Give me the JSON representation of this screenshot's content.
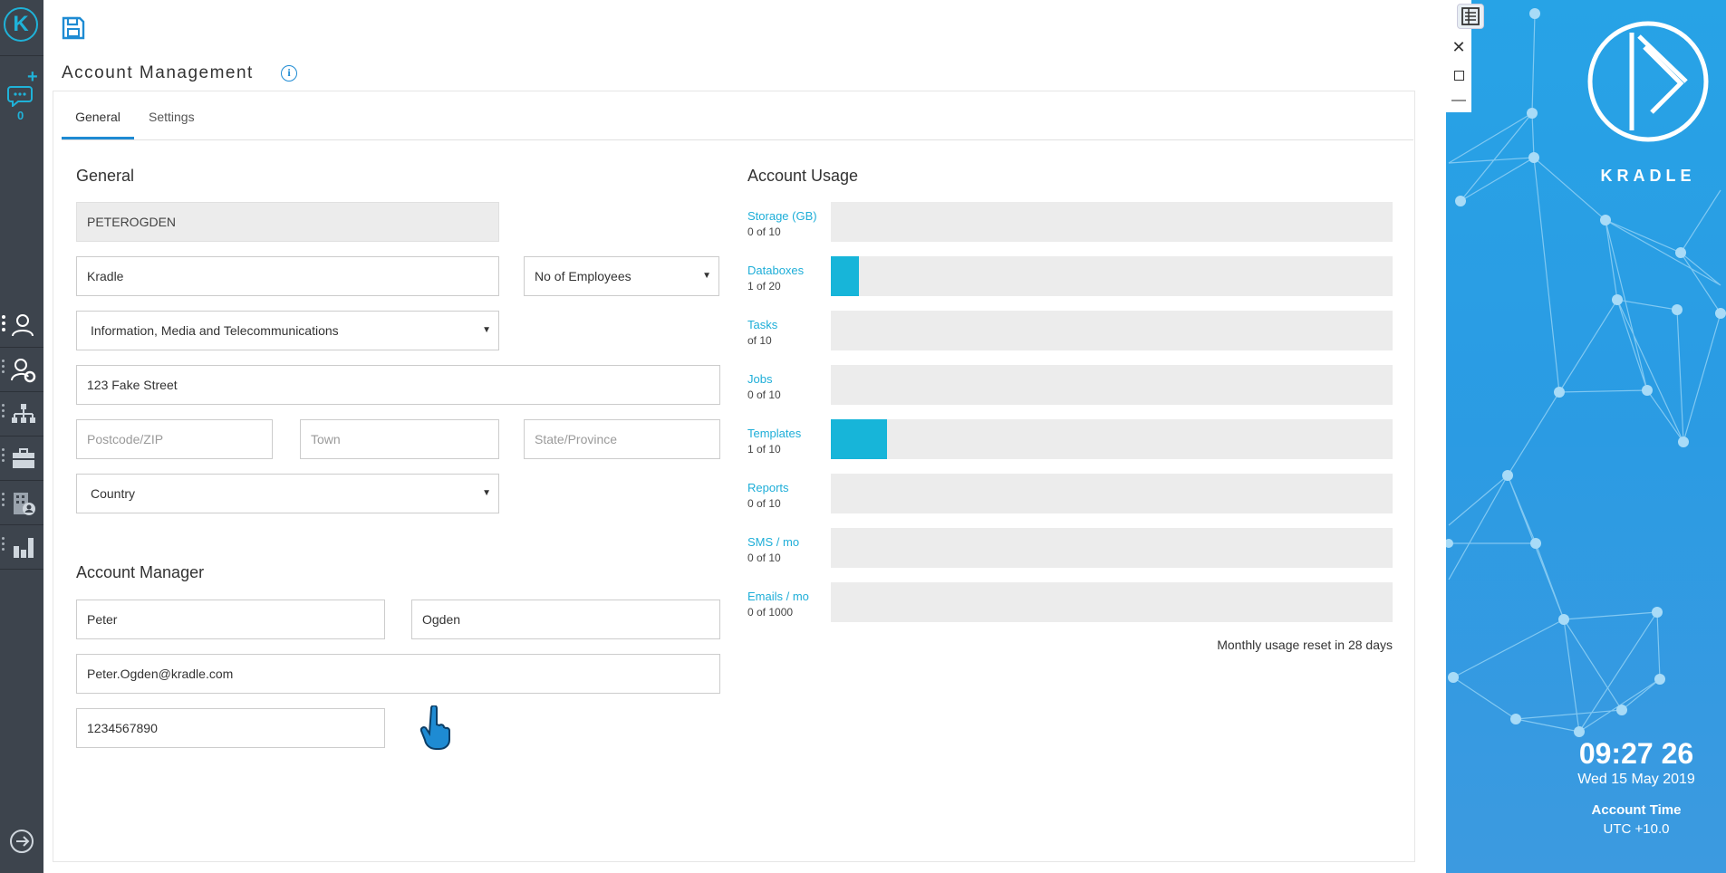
{
  "page": {
    "title": "Account Management"
  },
  "tabs": [
    {
      "label": "General"
    },
    {
      "label": "Settings"
    }
  ],
  "left_nav": {
    "chat_count": "0"
  },
  "general": {
    "heading": "General",
    "username": "PETEROGDEN",
    "company": "Kradle",
    "employees_select": "No of Employees",
    "industry_select": "Information, Media and Telecommunications",
    "address": "123 Fake Street",
    "postcode_placeholder": "Postcode/ZIP",
    "town_placeholder": "Town",
    "state_placeholder": "State/Province",
    "country_select": "Country"
  },
  "manager": {
    "heading": "Account Manager",
    "first_name": "Peter",
    "last_name": "Ogden",
    "email": "Peter.Ogden@kradle.com",
    "phone": "1234567890"
  },
  "usage": {
    "heading": "Account Usage",
    "items": [
      {
        "name": "Storage (GB)",
        "value": "0 of 10",
        "used": 0,
        "total": 10
      },
      {
        "name": "Databoxes",
        "value": "1 of 20",
        "used": 1,
        "total": 20
      },
      {
        "name": "Tasks",
        "value": "of 10",
        "used": 0,
        "total": 10
      },
      {
        "name": "Jobs",
        "value": "0 of 10",
        "used": 0,
        "total": 10
      },
      {
        "name": "Templates",
        "value": "1 of 10",
        "used": 1,
        "total": 10
      },
      {
        "name": "Reports",
        "value": "0 of 10",
        "used": 0,
        "total": 10
      },
      {
        "name": "SMS / mo",
        "value": "0 of 10",
        "used": 0,
        "total": 10
      },
      {
        "name": "Emails / mo",
        "value": "0 of 1000",
        "used": 0,
        "total": 1000
      }
    ],
    "reset_note": "Monthly usage reset in 28 days"
  },
  "brand": {
    "name": "KRADLE",
    "time": "09:27 26",
    "date": "Wed 15 May 2019",
    "time_label": "Account Time",
    "timezone": "UTC +10.0"
  },
  "colors": {
    "accent": "#1e8bd3",
    "usage_fill": "#17b5d9",
    "nav_bg": "#3d444d",
    "brand_bg": "#2b9be3"
  }
}
